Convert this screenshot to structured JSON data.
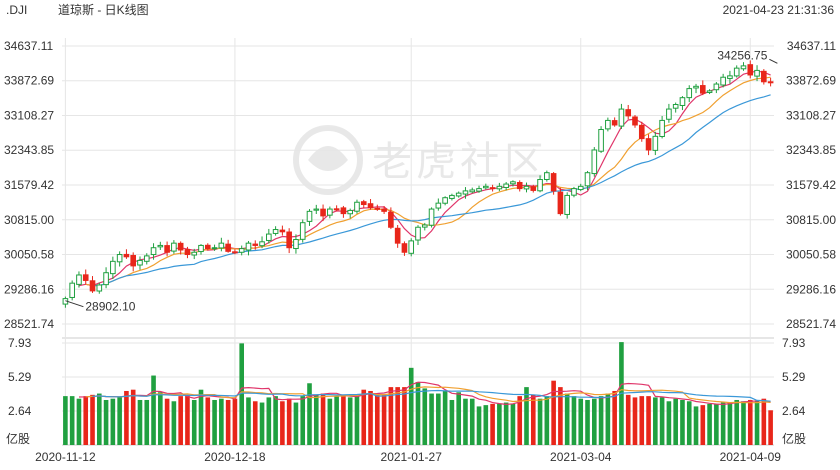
{
  "header": {
    "symbol": ".DJI",
    "title": "道琼斯 - 日K线图",
    "timestamp": "2021-04-23 21:31:36"
  },
  "watermark": {
    "text": "老虎社区"
  },
  "colors": {
    "up": "#20a040",
    "down": "#e8261a",
    "ma_short": "#e0356a",
    "ma_mid": "#f0a030",
    "ma_long": "#3a98d8",
    "grid": "#e6e6e6",
    "text": "#333333"
  },
  "chart_data": [
    {
      "type": "candlestick",
      "price_ticks": [
        "34637.11",
        "33872.69",
        "33108.27",
        "32343.85",
        "31579.42",
        "30815.00",
        "30050.58",
        "29286.16",
        "28521.74"
      ],
      "ylim": [
        28521.74,
        34637.11
      ],
      "x_ticks": [
        {
          "label": "2020-11-12",
          "index": 0
        },
        {
          "label": "2020-12-18",
          "index": 25
        },
        {
          "label": "2021-01-27",
          "index": 51
        },
        {
          "label": "2021-03-04",
          "index": 76
        },
        {
          "label": "2021-04-09",
          "index": 101
        }
      ],
      "annotations": [
        {
          "label": "34256.75",
          "index": 105,
          "value": 34256.75,
          "kind": "high"
        },
        {
          "label": "28902.10",
          "index": 0,
          "value": 28902.1,
          "kind": "low"
        }
      ],
      "moving_averages": [
        "short",
        "mid",
        "long"
      ],
      "closes": [
        29080,
        29420,
        29600,
        29480,
        29250,
        29380,
        29650,
        29900,
        30050,
        30000,
        29800,
        29920,
        30020,
        30200,
        30250,
        30100,
        30300,
        30150,
        30050,
        30100,
        30250,
        30180,
        30200,
        30300,
        30120,
        30100,
        30180,
        30300,
        30250,
        30330,
        30500,
        30600,
        30550,
        30200,
        30380,
        30750,
        31000,
        31050,
        30900,
        31050,
        31050,
        30950,
        31020,
        31200,
        31150,
        31080,
        31050,
        31000,
        30650,
        30300,
        30100,
        30350,
        30650,
        30700,
        31050,
        31180,
        31300,
        31350,
        31400,
        31450,
        31470,
        31500,
        31550,
        31520,
        31550,
        31600,
        31650,
        31500,
        31550,
        31460,
        31700,
        31850,
        31450,
        30950,
        31350,
        31500,
        31550,
        31850,
        32350,
        32800,
        33000,
        32900,
        33250,
        33100,
        32900,
        32600,
        32350,
        32650,
        33000,
        33250,
        33350,
        33500,
        33700,
        33750,
        33600,
        33650,
        33800,
        33950,
        33980,
        34150,
        34200,
        34000,
        34100,
        33850,
        33830
      ],
      "volumes": [
        3.8,
        3.8,
        3.6,
        3.8,
        3.9,
        4.0,
        3.5,
        3.6,
        3.7,
        4.2,
        4.3,
        3.5,
        3.5,
        5.4,
        4.1,
        3.6,
        3.4,
        3.8,
        3.9,
        3.5,
        4.3,
        3.7,
        3.5,
        3.6,
        3.5,
        3.6,
        7.9,
        3.7,
        3.4,
        3.3,
        3.7,
        3.8,
        3.4,
        3.6,
        3.3,
        3.8,
        4.8,
        3.9,
        4.0,
        3.6,
        3.8,
        3.9,
        3.7,
        3.8,
        4.3,
        4.2,
        4.0,
        3.9,
        4.5,
        4.5,
        4.5,
        6.0,
        4.9,
        4.4,
        4.0,
        4.0,
        4.2,
        3.5,
        4.1,
        3.6,
        3.6,
        3.0,
        3.1,
        3.2,
        3.2,
        3.3,
        3.2,
        3.8,
        4.5,
        3.9,
        3.6,
        3.8,
        5.0,
        4.5,
        4.0,
        3.8,
        3.6,
        3.5,
        3.6,
        3.8,
        4.0,
        4.2,
        8.0,
        3.9,
        3.7,
        3.8,
        3.8,
        3.7,
        3.7,
        3.4,
        3.6,
        3.5,
        3.4,
        3.0,
        3.1,
        3.2,
        3.2,
        3.3,
        3.3,
        3.5,
        3.4,
        3.5,
        3.4,
        3.6,
        2.7
      ],
      "volume_ticks": [
        "7.93",
        "5.29",
        "2.64"
      ],
      "volume_unit": "亿股",
      "volume_ylim": [
        0,
        7.93
      ]
    }
  ]
}
